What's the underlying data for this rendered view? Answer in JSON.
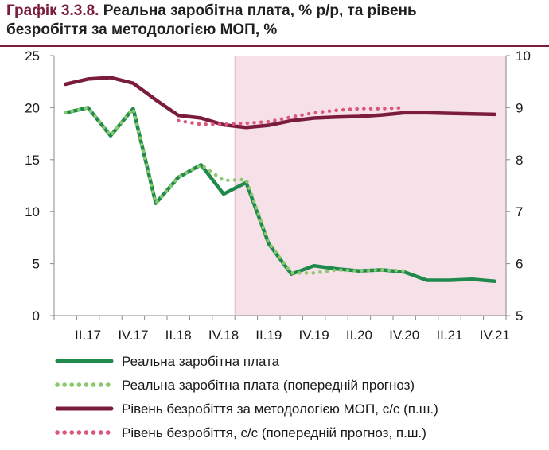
{
  "title": {
    "number": "Графік 3.3.8.",
    "line1": "Реальна заробітна плата, % р/р, та рівень",
    "line2": "безробіття за методологією МОП, %"
  },
  "chart_data": {
    "type": "line",
    "x": [
      "I.17",
      "II.17",
      "III.17",
      "IV.17",
      "I.18",
      "II.18",
      "III.18",
      "IV.18",
      "I.19",
      "II.19",
      "III.19",
      "IV.19",
      "I.20",
      "II.20",
      "III.20",
      "IV.20",
      "I.21",
      "II.21",
      "III.21",
      "IV.21"
    ],
    "x_tick_labels": [
      "II.17",
      "IV.17",
      "II.18",
      "IV.18",
      "II.19",
      "IV.19",
      "II.20",
      "IV.20",
      "II.21",
      "IV.21"
    ],
    "y_left": {
      "range": [
        0,
        25
      ],
      "ticks": [
        "0",
        "5",
        "10",
        "15",
        "20",
        "25"
      ]
    },
    "y_right": {
      "range": [
        5,
        10
      ],
      "ticks": [
        "5",
        "6",
        "7",
        "8",
        "9",
        "10"
      ]
    },
    "forecast_shading": {
      "from": "I.19",
      "to": "IV.21",
      "color": "#f7e1e8"
    },
    "series": [
      {
        "name": "Реальна заробітна плата",
        "axis": "left",
        "style": "solid",
        "color": "#1f8a4c",
        "values": [
          19.5,
          20.0,
          17.3,
          19.9,
          10.8,
          13.3,
          14.5,
          11.7,
          12.8,
          6.9,
          4.0,
          4.8,
          4.5,
          4.3,
          4.4,
          4.2,
          3.4,
          3.4,
          3.5,
          3.3
        ]
      },
      {
        "name": "Реальна заробітна плата (попередній прогноз)",
        "axis": "left",
        "style": "dotted",
        "color": "#8bc96f",
        "values": [
          19.5,
          20.0,
          17.3,
          19.9,
          10.8,
          13.3,
          14.5,
          13.0,
          13.1,
          7.0,
          4.1,
          4.1,
          4.4,
          4.3,
          4.4,
          4.3,
          null,
          null,
          null,
          null
        ]
      },
      {
        "name": "Рівень безробіття за методологією МОП, с/с (п.ш.)",
        "axis": "right",
        "style": "solid",
        "color": "#7b1c3e",
        "values": [
          9.45,
          9.55,
          9.58,
          9.47,
          9.15,
          8.85,
          8.8,
          8.67,
          8.62,
          8.66,
          8.75,
          8.8,
          8.82,
          8.83,
          8.86,
          8.9,
          8.9,
          8.89,
          8.88,
          8.87
        ]
      },
      {
        "name": "Рівень безробіття, с/с (попередній прогноз, п.ш.)",
        "axis": "right",
        "style": "dotted",
        "color": "#d9587c",
        "values": [
          null,
          null,
          null,
          null,
          null,
          8.75,
          8.68,
          8.68,
          8.7,
          8.73,
          8.82,
          8.9,
          8.95,
          8.98,
          8.98,
          9.0,
          null,
          null,
          null,
          null
        ]
      }
    ],
    "legend_position": "bottom",
    "grid": false
  }
}
